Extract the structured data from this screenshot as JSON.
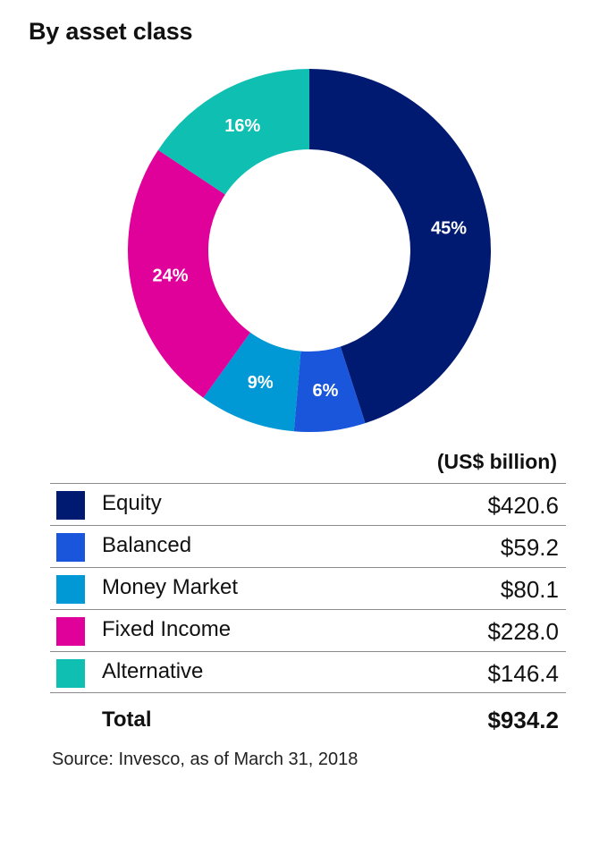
{
  "title": "By asset class",
  "units_label": "(US$ billion)",
  "source": "Source: Invesco, as of March 31, 2018",
  "total": {
    "label": "Total",
    "value": "$934.2"
  },
  "chart_data": {
    "type": "pie",
    "title": "By asset class",
    "categories": [
      "Equity",
      "Balanced",
      "Money Market",
      "Fixed Income",
      "Alternative"
    ],
    "values": [
      420.6,
      59.2,
      80.1,
      228.0,
      146.4
    ],
    "value_labels": [
      "$420.6",
      "$59.2",
      "$80.1",
      "$228.0",
      "$146.4"
    ],
    "percent_labels": [
      "45%",
      "6%",
      "9%",
      "24%",
      "16%"
    ],
    "colors": [
      "#001a72",
      "#1a56db",
      "#0099d6",
      "#e0009a",
      "#0fbfb2"
    ],
    "total": 934.2,
    "hole": true
  }
}
